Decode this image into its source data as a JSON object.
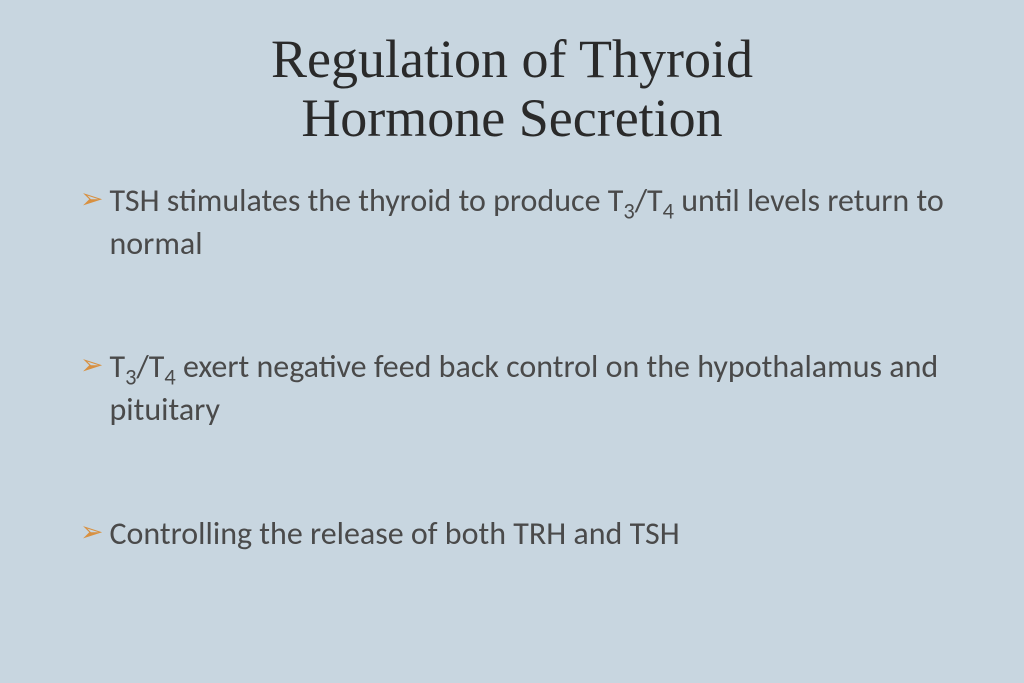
{
  "background_color": "#c8d6e0",
  "title": {
    "line1": "Regulation of Thyroid",
    "line2": "Hormone Secretion",
    "color": "#2a2a2a",
    "font_family": "Palatino Linotype",
    "font_size": 54
  },
  "bullet_marker_color": "#d89040",
  "body_text_color": "#4a4a4a",
  "body_font_size": 32,
  "bullets": [
    {
      "segments": [
        {
          "text": "TSH stimulates the thyroid to produce T",
          "sub": false
        },
        {
          "text": "3",
          "sub": true
        },
        {
          "text": "/T",
          "sub": false
        },
        {
          "text": "4",
          "sub": true
        },
        {
          "text": " until levels return to normal",
          "sub": false
        }
      ]
    },
    {
      "segments": [
        {
          "text": "T",
          "sub": false
        },
        {
          "text": "3",
          "sub": true
        },
        {
          "text": "/T",
          "sub": false
        },
        {
          "text": "4",
          "sub": true
        },
        {
          "text": " exert negative feed back control on the hypothalamus and pituitary",
          "sub": false
        }
      ]
    },
    {
      "segments": [
        {
          "text": "Controlling the release of both TRH and TSH",
          "sub": false
        }
      ]
    }
  ]
}
